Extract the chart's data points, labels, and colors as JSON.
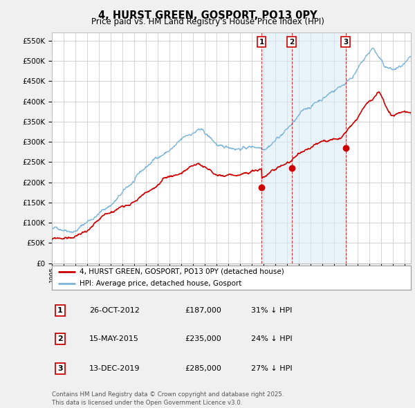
{
  "title": "4, HURST GREEN, GOSPORT, PO13 0PY",
  "subtitle": "Price paid vs. HM Land Registry's House Price Index (HPI)",
  "ylim": [
    0,
    570000
  ],
  "yticks": [
    0,
    50000,
    100000,
    150000,
    200000,
    250000,
    300000,
    350000,
    400000,
    450000,
    500000,
    550000
  ],
  "background_color": "#f0f0f0",
  "plot_bg_color": "#ffffff",
  "hpi_color": "#7ab3d8",
  "price_color": "#cc0000",
  "grid_color": "#cccccc",
  "legend_label_price": "4, HURST GREEN, GOSPORT, PO13 0PY (detached house)",
  "legend_label_hpi": "HPI: Average price, detached house, Gosport",
  "sales": [
    {
      "date_label": "26-OCT-2012",
      "date_x": 2012.82,
      "price": 187000,
      "label": "1",
      "hpi_pct": "31% ↓ HPI"
    },
    {
      "date_label": "15-MAY-2015",
      "date_x": 2015.37,
      "price": 235000,
      "label": "2",
      "hpi_pct": "24% ↓ HPI"
    },
    {
      "date_label": "13-DEC-2019",
      "date_x": 2019.95,
      "price": 285000,
      "label": "3",
      "hpi_pct": "27% ↓ HPI"
    }
  ],
  "footer": "Contains HM Land Registry data © Crown copyright and database right 2025.\nThis data is licensed under the Open Government Licence v3.0.",
  "xmin": 1995.0,
  "xmax": 2025.5,
  "shade_x1": 2012.82,
  "shade_x2": 2019.95
}
